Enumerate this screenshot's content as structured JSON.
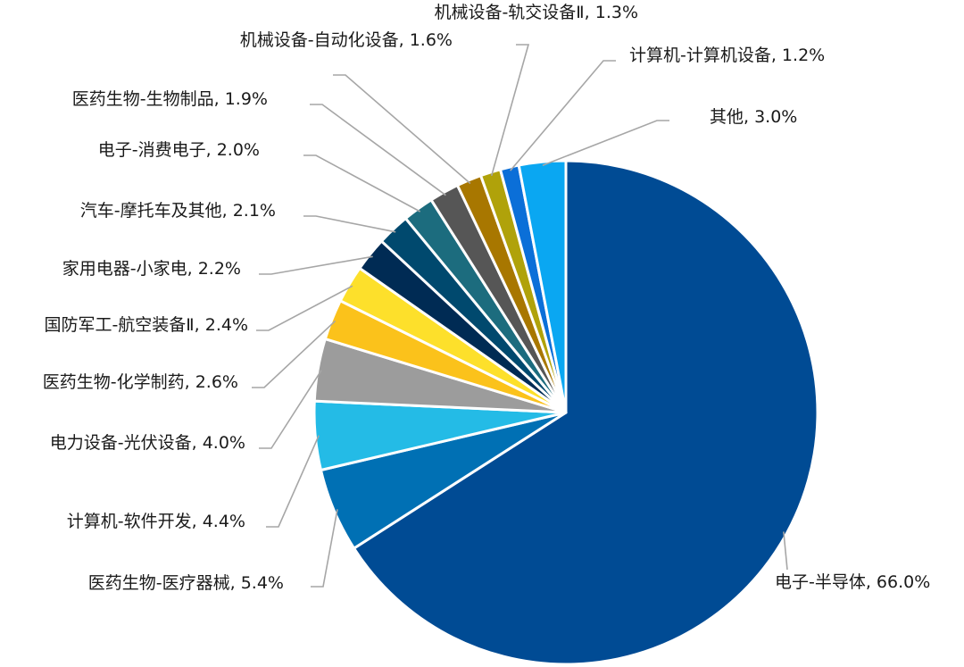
{
  "chart_data": {
    "type": "pie",
    "title": "",
    "slices": [
      {
        "label": "电子-半导体, 66.0%",
        "value": 66.0,
        "color": "#004b94"
      },
      {
        "label": "医药生物-医疗器械, 5.4%",
        "value": 5.4,
        "color": "#0070b4"
      },
      {
        "label": "计算机-软件开发, 4.4%",
        "value": 4.4,
        "color": "#24bbe6"
      },
      {
        "label": "电力设备-光伏设备, 4.0%",
        "value": 4.0,
        "color": "#9c9c9c"
      },
      {
        "label": "医药生物-化学制药, 2.6%",
        "value": 2.6,
        "color": "#fbc21b"
      },
      {
        "label": "国防军工-航空装备Ⅱ, 2.4%",
        "value": 2.4,
        "color": "#fde02b"
      },
      {
        "label": "家用电器-小家电, 2.2%",
        "value": 2.2,
        "color": "#002b54"
      },
      {
        "label": "汽车-摩托车及其他, 2.1%",
        "value": 2.1,
        "color": "#00496e"
      },
      {
        "label": "电子-消费电子, 2.0%",
        "value": 2.0,
        "color": "#1c6c7e"
      },
      {
        "label": "医药生物-生物制品, 1.9%",
        "value": 1.9,
        "color": "#565656"
      },
      {
        "label": "机械设备-自动化设备, 1.6%",
        "value": 1.6,
        "color": "#a87700"
      },
      {
        "label": "机械设备-轨交设备Ⅱ, 1.3%",
        "value": 1.3,
        "color": "#b0a20a"
      },
      {
        "label": "计算机-计算机设备, 1.2%",
        "value": 1.2,
        "color": "#0b6fd8"
      },
      {
        "label": "其他, 3.0%",
        "value": 3.0,
        "color": "#0aa7f2"
      }
    ]
  }
}
